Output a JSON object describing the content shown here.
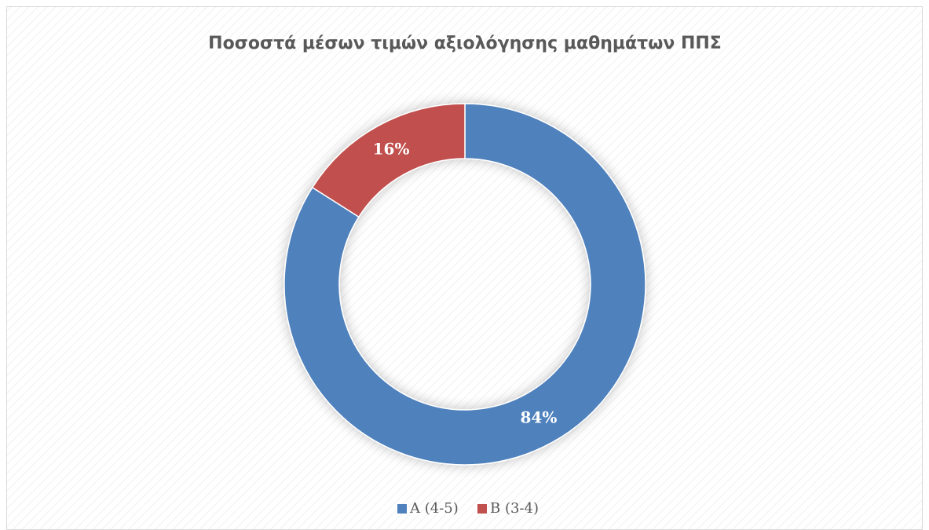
{
  "chart_data": {
    "type": "doughnut",
    "title": "Ποσοστά μέσων τιμών αξιολόγησης μαθημάτων ΠΠΣ",
    "categories": [
      "A (4-5)",
      "B (3-4)"
    ],
    "values": [
      84,
      16
    ],
    "value_labels": [
      "84%",
      "16%"
    ],
    "colors": [
      "#4f81bd",
      "#c0504d"
    ],
    "legend": "bottom"
  }
}
